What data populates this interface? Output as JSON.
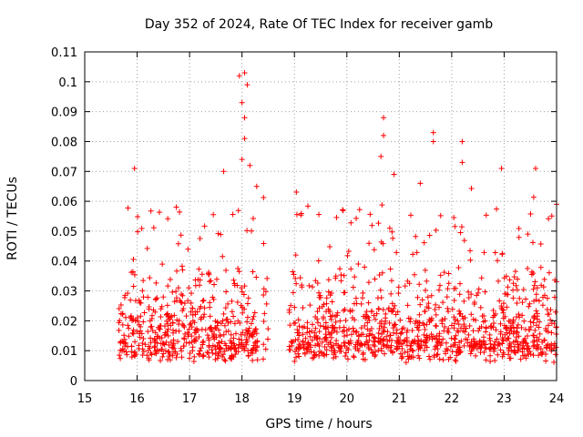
{
  "chart_data": {
    "type": "scatter",
    "title": "Day 352 of 2024, Rate Of TEC Index for receiver gamb",
    "xlabel": "GPS time / hours",
    "ylabel": "ROTI / TECUs",
    "xlim": [
      15,
      24
    ],
    "ylim": [
      0,
      0.11
    ],
    "x_ticks": [
      15,
      16,
      17,
      18,
      19,
      20,
      21,
      22,
      23,
      24
    ],
    "x_tick_labels": [
      "15",
      "16",
      "17",
      "18",
      "19",
      "20",
      "21",
      "22",
      "23",
      "24"
    ],
    "y_ticks": [
      0,
      0.01,
      0.02,
      0.03,
      0.04,
      0.05,
      0.06,
      0.07,
      0.08,
      0.09,
      0.1,
      0.11
    ],
    "y_tick_labels": [
      "0",
      "0.01",
      "0.02",
      "0.03",
      "0.04",
      "0.05",
      "0.06",
      "0.07",
      "0.08",
      "0.09",
      "0.1",
      "0.11"
    ],
    "grid": true,
    "marker": "+",
    "color": "#ff0000",
    "data_segments": [
      {
        "x_start": 15.65,
        "x_end": 18.3,
        "density": 520
      },
      {
        "x_start": 18.4,
        "x_end": 18.5,
        "density": 14
      },
      {
        "x_start": 18.9,
        "x_end": 24.0,
        "density": 1000
      }
    ],
    "notable_points": [
      {
        "x": 15.95,
        "y": 0.071
      },
      {
        "x": 17.65,
        "y": 0.07
      },
      {
        "x": 17.95,
        "y": 0.102
      },
      {
        "x": 18.05,
        "y": 0.103
      },
      {
        "x": 18.1,
        "y": 0.099
      },
      {
        "x": 18.0,
        "y": 0.093
      },
      {
        "x": 18.05,
        "y": 0.088
      },
      {
        "x": 18.05,
        "y": 0.081
      },
      {
        "x": 18.15,
        "y": 0.072
      },
      {
        "x": 18.0,
        "y": 0.074
      },
      {
        "x": 20.7,
        "y": 0.088
      },
      {
        "x": 20.7,
        "y": 0.082
      },
      {
        "x": 20.65,
        "y": 0.075
      },
      {
        "x": 21.65,
        "y": 0.083
      },
      {
        "x": 21.65,
        "y": 0.08
      },
      {
        "x": 22.2,
        "y": 0.08
      },
      {
        "x": 22.2,
        "y": 0.073
      },
      {
        "x": 22.95,
        "y": 0.071
      },
      {
        "x": 23.6,
        "y": 0.071
      },
      {
        "x": 21.4,
        "y": 0.066
      },
      {
        "x": 20.9,
        "y": 0.069
      },
      {
        "x": 24.0,
        "y": 0.059
      }
    ]
  }
}
